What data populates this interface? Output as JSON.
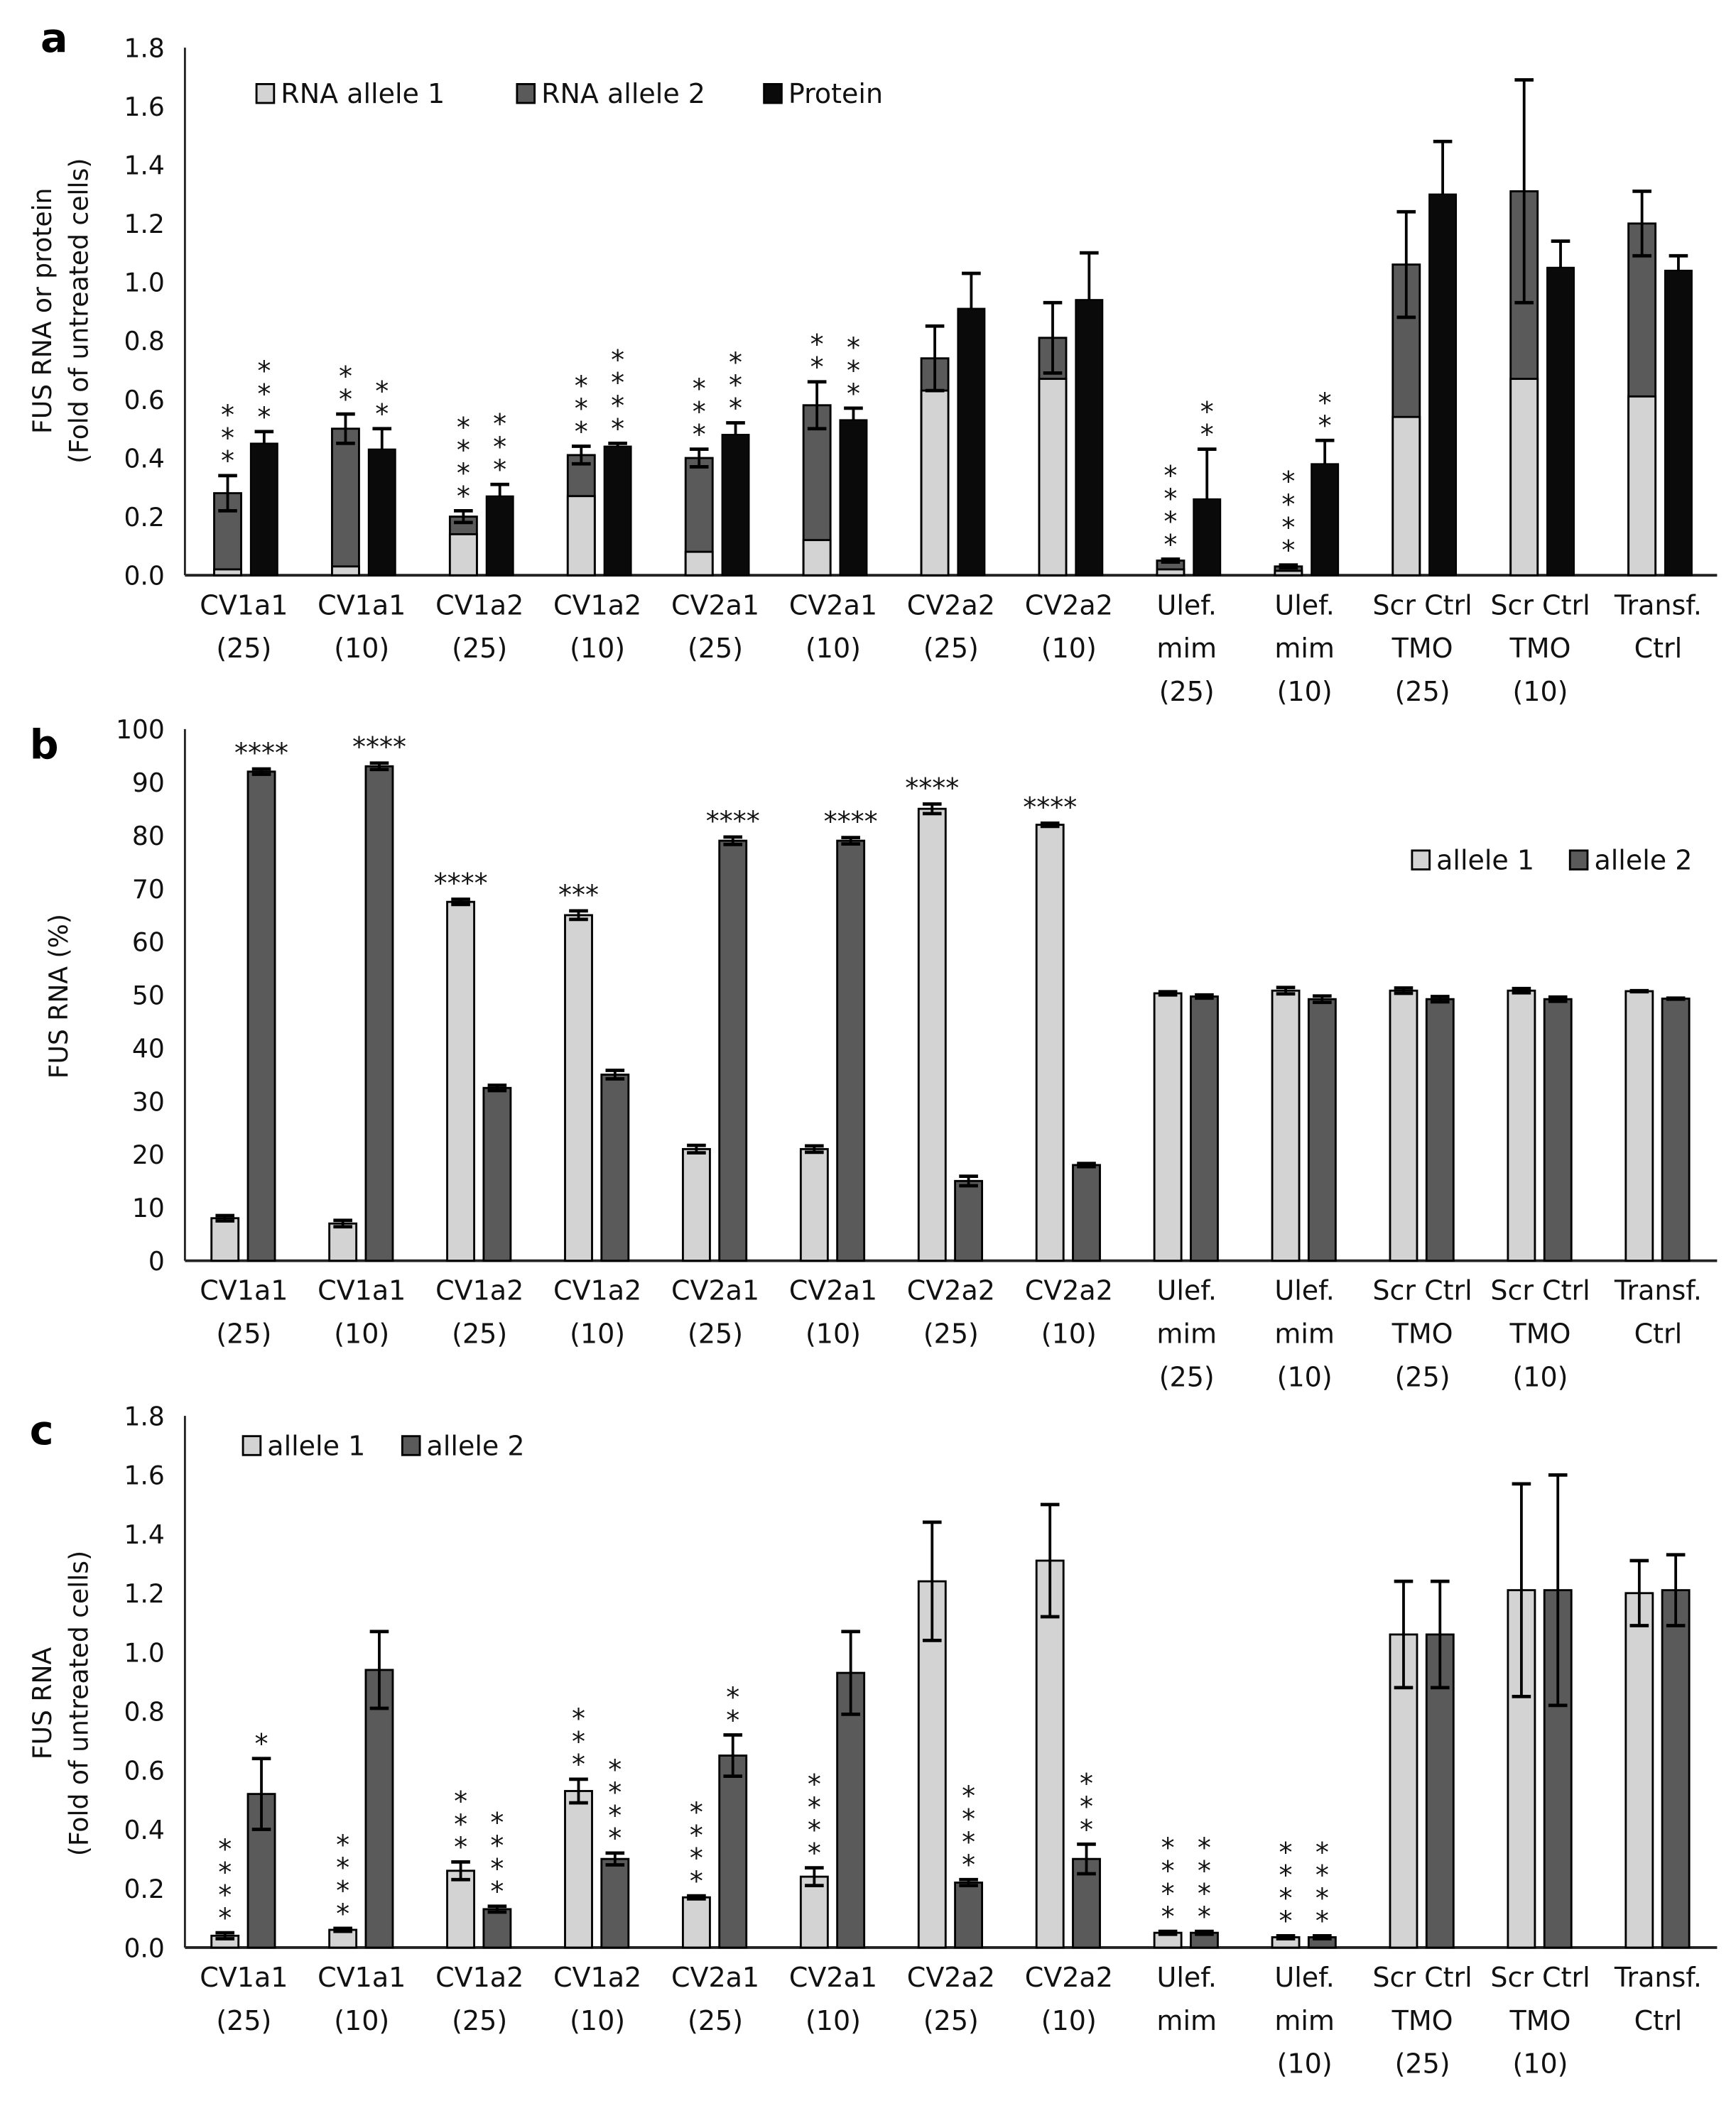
{
  "colors": {
    "allele1": "#d3d3d3",
    "allele2": "#5a5a5a",
    "protein": "#0a0a0a"
  },
  "categories": [
    [
      "CV1a1",
      "(25)"
    ],
    [
      "CV1a1",
      "(10)"
    ],
    [
      "CV1a2",
      "(25)"
    ],
    [
      "CV1a2",
      "(10)"
    ],
    [
      "CV2a1",
      "(25)"
    ],
    [
      "CV2a1",
      "(10)"
    ],
    [
      "CV2a2",
      "(25)"
    ],
    [
      "CV2a2",
      "(10)"
    ],
    [
      "Ulef.",
      "mim",
      "(25)"
    ],
    [
      "Ulef.",
      "mim",
      "(10)"
    ],
    [
      "Scr Ctrl",
      "TMO",
      "(25)"
    ],
    [
      "Scr Ctrl",
      "TMO",
      "(10)"
    ],
    [
      "Transf.",
      "Ctrl"
    ]
  ],
  "chart_data": [
    {
      "panel": "a",
      "type": "bar",
      "stacked_plus_grouped": true,
      "ylabel": [
        "FUS RNA or protein",
        "(Fold of untreated cells)"
      ],
      "ylim": [
        0,
        1.8
      ],
      "yticks": [
        "0.0",
        "0.2",
        "0.4",
        "0.6",
        "0.8",
        "1.0",
        "1.2",
        "1.4",
        "1.6",
        "1.8"
      ],
      "legend": [
        "RNA allele 1",
        "RNA allele 2",
        "Protein"
      ],
      "legend_position": "top-left",
      "series": [
        {
          "name": "RNA allele 1",
          "values": [
            0.02,
            0.03,
            0.14,
            0.27,
            0.08,
            0.12,
            0.63,
            0.67,
            0.02,
            0.015,
            0.54,
            0.67,
            0.61
          ]
        },
        {
          "name": "RNA allele 2",
          "stack_total": [
            0.28,
            0.5,
            0.2,
            0.41,
            0.4,
            0.58,
            0.74,
            0.81,
            0.05,
            0.03,
            1.06,
            1.31,
            1.2
          ],
          "error": [
            0.06,
            0.05,
            0.02,
            0.03,
            0.03,
            0.08,
            0.11,
            0.12,
            0.005,
            0.005,
            0.18,
            0.38,
            0.11
          ],
          "stars": [
            "***",
            "**",
            "****",
            "***",
            "***",
            "**",
            "",
            "",
            "****",
            "****",
            "",
            "",
            ""
          ]
        },
        {
          "name": "Protein",
          "values": [
            0.45,
            0.43,
            0.27,
            0.44,
            0.48,
            0.53,
            0.91,
            0.94,
            0.26,
            0.38,
            1.3,
            1.05,
            1.04
          ],
          "error": [
            0.04,
            0.07,
            0.04,
            0.01,
            0.04,
            0.04,
            0.12,
            0.16,
            0.17,
            0.08,
            0.18,
            0.09,
            0.05
          ],
          "stars": [
            "***",
            "**",
            "***",
            "****",
            "***",
            "***",
            "",
            "",
            "**",
            "**",
            "",
            "",
            ""
          ]
        }
      ]
    },
    {
      "panel": "b",
      "type": "bar",
      "ylabel": [
        "FUS RNA (%)"
      ],
      "ylim": [
        0,
        100
      ],
      "yticks": [
        "0",
        "10",
        "20",
        "30",
        "40",
        "50",
        "60",
        "70",
        "80",
        "90",
        "100"
      ],
      "legend": [
        "allele 1",
        "allele 2"
      ],
      "legend_position": "right",
      "series": [
        {
          "name": "allele 1",
          "values": [
            8,
            7,
            67.5,
            65,
            21,
            21,
            85,
            82,
            50.3,
            50.8,
            50.8,
            50.8,
            50.7
          ],
          "error": [
            0.5,
            0.6,
            0.5,
            0.8,
            0.7,
            0.6,
            0.9,
            0.3,
            0.3,
            0.6,
            0.5,
            0.4,
            0.1
          ],
          "stars": [
            "",
            "",
            "****",
            "***",
            "",
            "",
            "****",
            "****",
            "",
            "",
            "",
            "",
            ""
          ]
        },
        {
          "name": "allele 2",
          "values": [
            92,
            93,
            32.5,
            35,
            79,
            79,
            15,
            18,
            49.7,
            49.2,
            49.2,
            49.2,
            49.3
          ],
          "error": [
            0.5,
            0.6,
            0.5,
            0.8,
            0.7,
            0.6,
            0.9,
            0.3,
            0.3,
            0.6,
            0.5,
            0.4,
            0.1
          ],
          "stars": [
            "****",
            "****",
            "",
            "",
            "****",
            "****",
            "",
            "",
            "",
            "",
            "",
            "",
            ""
          ]
        }
      ]
    },
    {
      "panel": "c",
      "type": "bar",
      "ylabel": [
        "FUS RNA",
        "(Fold of untreated cells)"
      ],
      "ylim": [
        0,
        1.8
      ],
      "yticks": [
        "0.0",
        "0.2",
        "0.4",
        "0.6",
        "0.8",
        "1.0",
        "1.2",
        "1.4",
        "1.6",
        "1.8"
      ],
      "legend": [
        "allele 1",
        "allele 2"
      ],
      "legend_position": "top-left",
      "categories_override_9": [
        "Ulef.",
        "mim"
      ],
      "series": [
        {
          "name": "allele 1",
          "values": [
            0.04,
            0.06,
            0.26,
            0.53,
            0.17,
            0.24,
            1.24,
            1.31,
            0.05,
            0.035,
            1.06,
            1.21,
            1.2
          ],
          "error": [
            0.01,
            0.005,
            0.03,
            0.04,
            0.005,
            0.03,
            0.2,
            0.19,
            0.005,
            0.005,
            0.18,
            0.36,
            0.11
          ],
          "stars": [
            "****",
            "****",
            "***",
            "***",
            "****",
            "****",
            "",
            "",
            "****",
            "****",
            "",
            "",
            ""
          ]
        },
        {
          "name": "allele 2",
          "values": [
            0.52,
            0.94,
            0.13,
            0.3,
            0.65,
            0.93,
            0.22,
            0.3,
            0.05,
            0.035,
            1.06,
            1.21,
            1.21
          ],
          "error": [
            0.12,
            0.13,
            0.01,
            0.02,
            0.07,
            0.14,
            0.01,
            0.05,
            0.005,
            0.005,
            0.18,
            0.39,
            0.12
          ],
          "stars": [
            "*",
            "",
            "****",
            "****",
            "**",
            "",
            "****",
            "***",
            "****",
            "****",
            "",
            "",
            ""
          ]
        }
      ]
    }
  ],
  "panel_labels": [
    "a",
    "b",
    "c"
  ]
}
